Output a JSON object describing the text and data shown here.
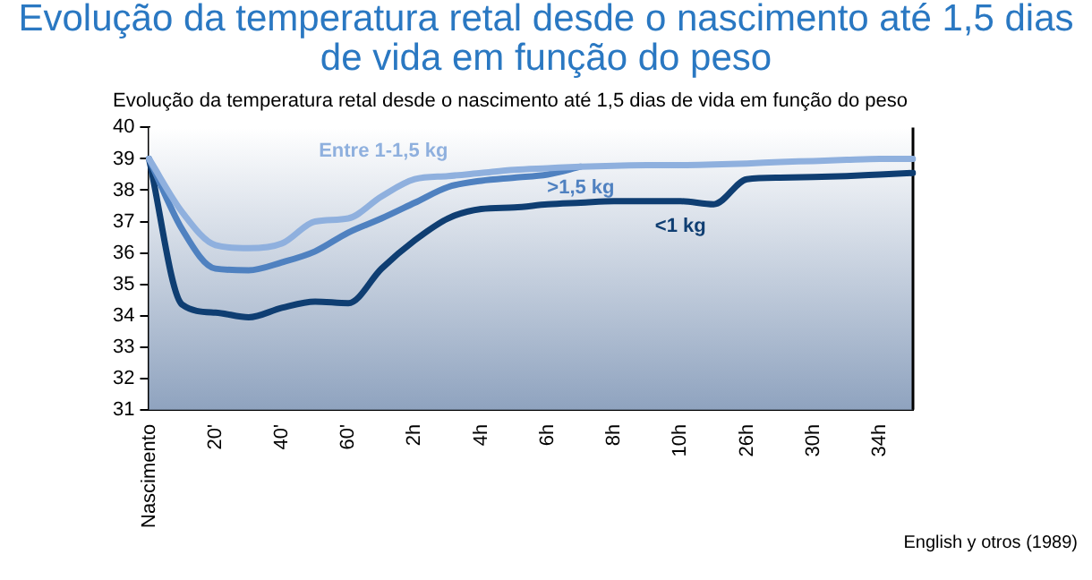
{
  "chart_data": {
    "type": "line",
    "title": "Evolução da temperatura retal desde o nascimento até 1,5 dias de vida em função do peso",
    "subtitle": "Evolução da temperatura retal desde o nascimento até 1,5 dias de vida em função do peso",
    "annotations": [
      "English y otros (1989)"
    ],
    "categories": [
      "Nascimento",
      null,
      "20'",
      null,
      "40'",
      null,
      "60'",
      null,
      "2h",
      null,
      "4h",
      null,
      "6h",
      null,
      "8h",
      null,
      "10h",
      null,
      "26h",
      null,
      "30h",
      null,
      "34h",
      null
    ],
    "series": [
      {
        "name": "Entre 1-1,5 kg",
        "color": "#8fb0de",
        "values": [
          39,
          37.3,
          36.25,
          36.15,
          36.3,
          37,
          37.1,
          37.8,
          38.35,
          38.45,
          38.55,
          38.65,
          38.7,
          38.75,
          38.78,
          38.8,
          38.8,
          38.82,
          38.85,
          38.9,
          38.93,
          38.97,
          39,
          39
        ]
      },
      {
        "name": ">1,5 kg",
        "color": "#4f81c0",
        "values": [
          39,
          36.75,
          35.5,
          35.45,
          35.7,
          36.05,
          36.65,
          37.1,
          37.6,
          38.1,
          38.3,
          38.4,
          38.5,
          38.75,
          null,
          null,
          null,
          null,
          null,
          null,
          null,
          null,
          null,
          null
        ]
      },
      {
        "name": "<1 kg",
        "color": "#0f3e72",
        "values": [
          39,
          34.35,
          34.1,
          33.95,
          34.25,
          34.45,
          34.4,
          35.5,
          36.4,
          37.1,
          37.4,
          37.45,
          37.55,
          37.6,
          37.65,
          37.65,
          37.65,
          37.55,
          38.35,
          38.4,
          38.42,
          38.45,
          38.5,
          38.55
        ]
      }
    ],
    "ylim": [
      31,
      40
    ],
    "yticks": [
      31,
      32,
      33,
      34,
      35,
      36,
      37,
      38,
      39,
      40
    ],
    "grid": false,
    "legend": false,
    "marker": "none",
    "line_style": "solid"
  }
}
